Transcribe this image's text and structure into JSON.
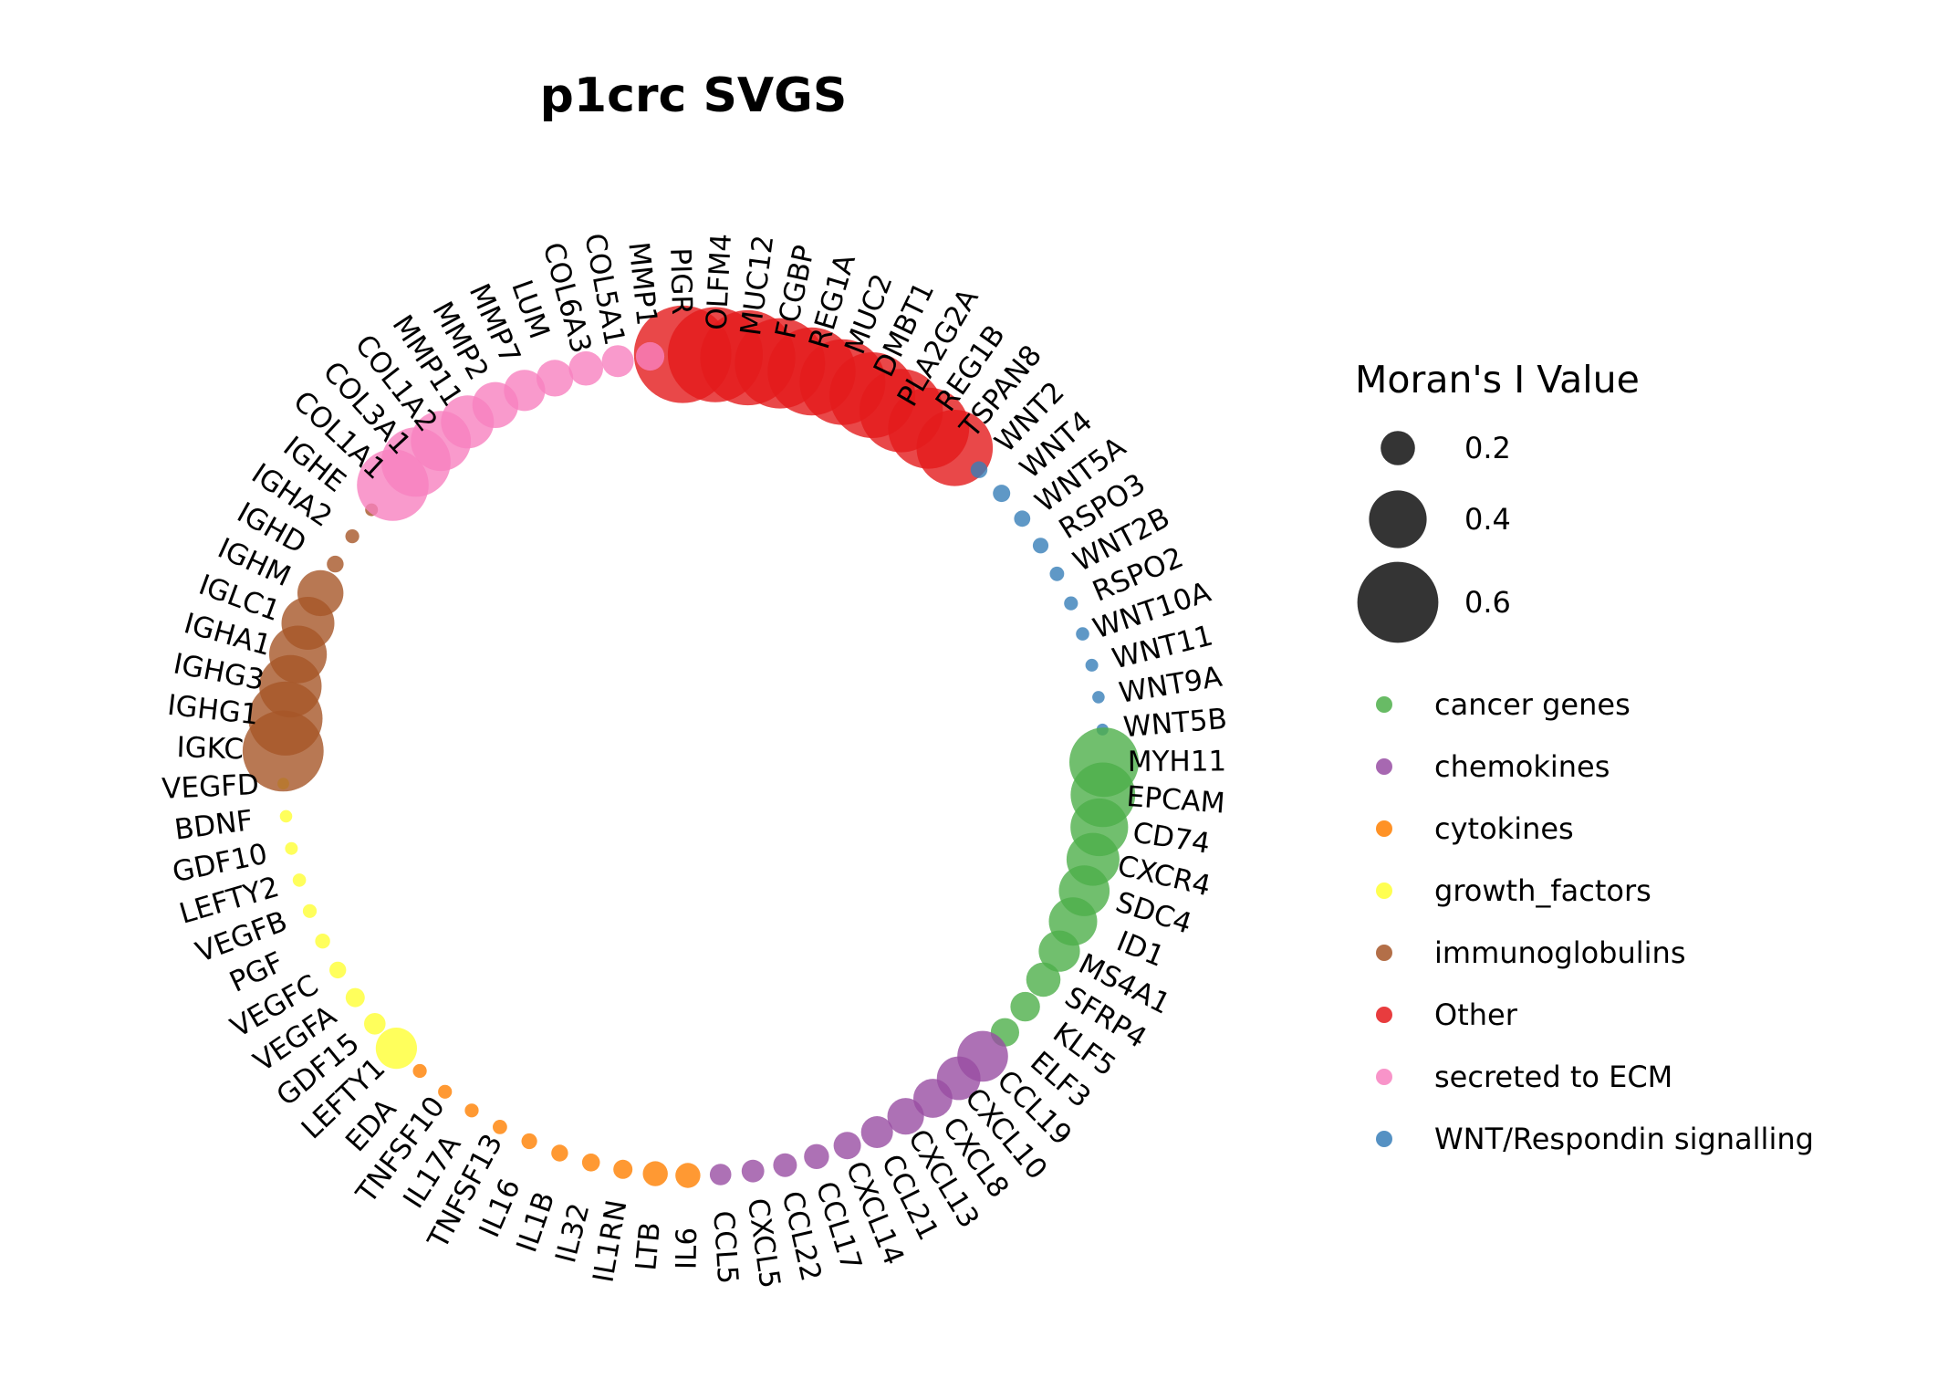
{
  "chart_data": {
    "type": "scatter",
    "title": "p1crc SVGS",
    "layout": "circular",
    "size_legend": {
      "title": "Moran's I Value",
      "values": [
        0.2,
        0.4,
        0.6
      ],
      "labels": [
        "0.2",
        "0.4",
        "0.6"
      ]
    },
    "category_legend": [
      {
        "name": "cancer genes",
        "color": "#4daf4a"
      },
      {
        "name": "chemokines",
        "color": "#984ea3"
      },
      {
        "name": "cytokines",
        "color": "#ff7f00"
      },
      {
        "name": "growth_factors",
        "color": "#ffff33"
      },
      {
        "name": "immunoglobulins",
        "color": "#a65628"
      },
      {
        "name": "Other",
        "color": "#e41a1c"
      },
      {
        "name": "secreted to ECM",
        "color": "#f781bf"
      },
      {
        "name": "WNT/Respondin signalling",
        "color": "#377eb8"
      }
    ],
    "genes": [
      {
        "gene": "PIGR",
        "category": "Other",
        "value": 0.74
      },
      {
        "gene": "OLFM4",
        "category": "Other",
        "value": 0.72
      },
      {
        "gene": "MUC12",
        "category": "Other",
        "value": 0.72
      },
      {
        "gene": "FCGBP",
        "category": "Other",
        "value": 0.68
      },
      {
        "gene": "REG1A",
        "category": "Other",
        "value": 0.66
      },
      {
        "gene": "MUC2",
        "category": "Other",
        "value": 0.64
      },
      {
        "gene": "DMBT1",
        "category": "Other",
        "value": 0.64
      },
      {
        "gene": "PLA2G2A",
        "category": "Other",
        "value": 0.62
      },
      {
        "gene": "REG1B",
        "category": "Other",
        "value": 0.6
      },
      {
        "gene": "TSPAN8",
        "category": "Other",
        "value": 0.56
      },
      {
        "gene": "WNT2",
        "category": "WNT/Respondin signalling",
        "value": 0.05
      },
      {
        "gene": "WNT4",
        "category": "WNT/Respondin signalling",
        "value": 0.055
      },
      {
        "gene": "WNT5A",
        "category": "WNT/Respondin signalling",
        "value": 0.045
      },
      {
        "gene": "RSPO3",
        "category": "WNT/Respondin signalling",
        "value": 0.04
      },
      {
        "gene": "WNT2B",
        "category": "WNT/Respondin signalling",
        "value": 0.03
      },
      {
        "gene": "RSPO2",
        "category": "WNT/Respondin signalling",
        "value": 0.025
      },
      {
        "gene": "WNT10A",
        "category": "WNT/Respondin signalling",
        "value": 0.02
      },
      {
        "gene": "WNT11",
        "category": "WNT/Respondin signalling",
        "value": 0.015
      },
      {
        "gene": "WNT9A",
        "category": "WNT/Respondin signalling",
        "value": 0.012
      },
      {
        "gene": "WNT5B",
        "category": "WNT/Respondin signalling",
        "value": 0.008
      },
      {
        "gene": "MYH11",
        "category": "cancer genes",
        "value": 0.5
      },
      {
        "gene": "EPCAM",
        "category": "cancer genes",
        "value": 0.46
      },
      {
        "gene": "CD74",
        "category": "cancer genes",
        "value": 0.4
      },
      {
        "gene": "CXCR4",
        "category": "cancer genes",
        "value": 0.36
      },
      {
        "gene": "SDC4",
        "category": "cancer genes",
        "value": 0.34
      },
      {
        "gene": "ID1",
        "category": "cancer genes",
        "value": 0.32
      },
      {
        "gene": "MS4A1",
        "category": "cancer genes",
        "value": 0.26
      },
      {
        "gene": "SFRP4",
        "category": "cancer genes",
        "value": 0.2
      },
      {
        "gene": "KLF5",
        "category": "cancer genes",
        "value": 0.16
      },
      {
        "gene": "ELF3",
        "category": "cancer genes",
        "value": 0.15
      },
      {
        "gene": "CCL19",
        "category": "chemokines",
        "value": 0.34
      },
      {
        "gene": "CXCL10",
        "category": "chemokines",
        "value": 0.28
      },
      {
        "gene": "CXCL8",
        "category": "chemokines",
        "value": 0.24
      },
      {
        "gene": "CXCL13",
        "category": "chemokines",
        "value": 0.22
      },
      {
        "gene": "CCL21",
        "category": "chemokines",
        "value": 0.18
      },
      {
        "gene": "CXCL14",
        "category": "chemokines",
        "value": 0.14
      },
      {
        "gene": "CCL17",
        "category": "chemokines",
        "value": 0.12
      },
      {
        "gene": "CCL22",
        "category": "chemokines",
        "value": 0.11
      },
      {
        "gene": "CXCL5",
        "category": "chemokines",
        "value": 0.1
      },
      {
        "gene": "CCL5",
        "category": "chemokines",
        "value": 0.09
      },
      {
        "gene": "IL6",
        "category": "cytokines",
        "value": 0.12
      },
      {
        "gene": "LTB",
        "category": "cytokines",
        "value": 0.12
      },
      {
        "gene": "IL1RN",
        "category": "cytokines",
        "value": 0.07
      },
      {
        "gene": "IL32",
        "category": "cytokines",
        "value": 0.06
      },
      {
        "gene": "IL1B",
        "category": "cytokines",
        "value": 0.05
      },
      {
        "gene": "IL16",
        "category": "cytokines",
        "value": 0.04
      },
      {
        "gene": "TNFSF13",
        "category": "cytokines",
        "value": 0.03
      },
      {
        "gene": "IL17A",
        "category": "cytokines",
        "value": 0.025
      },
      {
        "gene": "TNFSF10",
        "category": "cytokines",
        "value": 0.025
      },
      {
        "gene": "EDA",
        "category": "cytokines",
        "value": 0.025
      },
      {
        "gene": "LEFTY1",
        "category": "growth_factors",
        "value": 0.26
      },
      {
        "gene": "GDF15",
        "category": "growth_factors",
        "value": 0.09
      },
      {
        "gene": "VEGFA",
        "category": "growth_factors",
        "value": 0.07
      },
      {
        "gene": "VEGFC",
        "category": "growth_factors",
        "value": 0.05
      },
      {
        "gene": "PGF",
        "category": "growth_factors",
        "value": 0.035
      },
      {
        "gene": "VEGFB",
        "category": "growth_factors",
        "value": 0.025
      },
      {
        "gene": "LEFTY2",
        "category": "growth_factors",
        "value": 0.02
      },
      {
        "gene": "GDF10",
        "category": "growth_factors",
        "value": 0.015
      },
      {
        "gene": "BDNF",
        "category": "growth_factors",
        "value": 0.013
      },
      {
        "gene": "VEGFD",
        "category": "growth_factors",
        "value": 0.006
      },
      {
        "gene": "IGKC",
        "category": "immunoglobulins",
        "value": 0.6
      },
      {
        "gene": "IGHG1",
        "category": "immunoglobulins",
        "value": 0.54
      },
      {
        "gene": "IGHG3",
        "category": "immunoglobulins",
        "value": 0.44
      },
      {
        "gene": "IGHA1",
        "category": "immunoglobulins",
        "value": 0.4
      },
      {
        "gene": "IGLC1",
        "category": "immunoglobulins",
        "value": 0.36
      },
      {
        "gene": "IGHM",
        "category": "immunoglobulins",
        "value": 0.3
      },
      {
        "gene": "IGHD",
        "category": "immunoglobulins",
        "value": 0.05
      },
      {
        "gene": "IGHA2",
        "category": "immunoglobulins",
        "value": 0.025
      },
      {
        "gene": "IGHE",
        "category": "immunoglobulins",
        "value": 0.015
      },
      {
        "gene": "COL1A1",
        "category": "secreted to ECM",
        "value": 0.52
      },
      {
        "gene": "COL3A1",
        "category": "secreted to ECM",
        "value": 0.5
      },
      {
        "gene": "COL1A2",
        "category": "secreted to ECM",
        "value": 0.42
      },
      {
        "gene": "MMP11",
        "category": "secreted to ECM",
        "value": 0.36
      },
      {
        "gene": "MMP2",
        "category": "secreted to ECM",
        "value": 0.3
      },
      {
        "gene": "MMP7",
        "category": "secreted to ECM",
        "value": 0.26
      },
      {
        "gene": "LUM",
        "category": "secreted to ECM",
        "value": 0.22
      },
      {
        "gene": "COL6A3",
        "category": "secreted to ECM",
        "value": 0.2
      },
      {
        "gene": "COL5A1",
        "category": "secreted to ECM",
        "value": 0.18
      },
      {
        "gene": "MMP1",
        "category": "secreted to ECM",
        "value": 0.15
      }
    ]
  }
}
